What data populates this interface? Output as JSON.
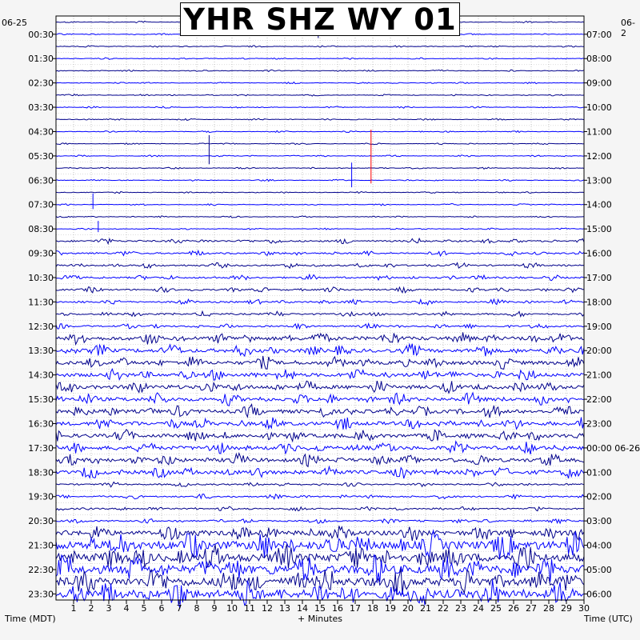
{
  "chart_data": {
    "type": "line",
    "title": "YHR SHZ WY 01",
    "xlabel": "+ Minutes",
    "left_axis_label": "Time (MDT)",
    "right_axis_label": "Time (UTC)",
    "left_date": "06-25",
    "right_date": "06-2",
    "x_ticks": [
      1,
      2,
      3,
      4,
      5,
      6,
      7,
      8,
      9,
      10,
      11,
      12,
      13,
      14,
      15,
      16,
      17,
      18,
      19,
      20,
      21,
      22,
      23,
      24,
      25,
      26,
      27,
      28,
      29,
      30
    ],
    "xlim": [
      0,
      30
    ],
    "left_ticks": [
      "00:30",
      "01:30",
      "02:30",
      "03:30",
      "04:30",
      "05:30",
      "06:30",
      "07:30",
      "08:30",
      "09:30",
      "10:30",
      "11:30",
      "12:30",
      "13:30",
      "14:30",
      "15:30",
      "16:30",
      "17:30",
      "18:30",
      "19:30",
      "20:30",
      "21:30",
      "22:30",
      "23:30"
    ],
    "right_ticks": [
      "07:00",
      "08:00",
      "09:00",
      "10:00",
      "11:00",
      "12:00",
      "13:00",
      "14:00",
      "15:00",
      "16:00",
      "17:00",
      "18:00",
      "19:00",
      "20:00",
      "21:00",
      "22:00",
      "23:00",
      "00:00 06-26",
      "01:00",
      "02:00",
      "03:00",
      "04:00",
      "05:00",
      "06:00"
    ],
    "traces_per_hour": 2,
    "trace_minutes": 30,
    "trace_colors": [
      "#00008b",
      "#0000ff"
    ],
    "event_color": "#ff0000",
    "grid": true,
    "grid_style": "dotted",
    "series": [
      {
        "rows": "00:00-09:00",
        "activity": "low"
      },
      {
        "rows": "09:00-13:00",
        "activity": "moderate"
      },
      {
        "rows": "13:00-19:00",
        "activity": "high"
      },
      {
        "rows": "19:00-21:00",
        "activity": "moderate"
      },
      {
        "rows": "21:00-24:00",
        "activity": "very-high"
      }
    ]
  }
}
